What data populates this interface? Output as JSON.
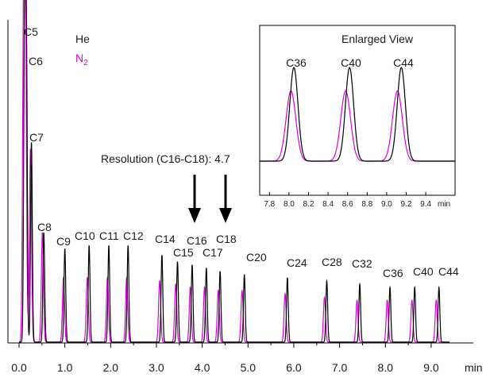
{
  "chart_data": {
    "type": "line",
    "xlabel": "min",
    "xlim": [
      0.0,
      9.4
    ],
    "x_ticks": [
      "0.0",
      "1.0",
      "2.0",
      "3.0",
      "4.0",
      "5.0",
      "6.0",
      "7.0",
      "8.0",
      "9.0"
    ],
    "ylim": [
      0,
      1
    ],
    "series": [
      {
        "name": "He",
        "color": "#000000"
      },
      {
        "name": "N2",
        "color": "#e000e0"
      }
    ],
    "peaks": [
      {
        "label": "C5",
        "he_rt": 0.12,
        "he_h": 0.97,
        "n2_rt": 0.1,
        "n2_h": 0.99
      },
      {
        "label": "C6",
        "he_rt": 0.16,
        "he_h": 0.93,
        "n2_rt": 0.14,
        "n2_h": 0.91
      },
      {
        "label": "C7",
        "he_rt": 0.27,
        "he_h": 0.62,
        "n2_rt": 0.25,
        "n2_h": 0.6
      },
      {
        "label": "C8",
        "he_rt": 0.54,
        "he_h": 0.34,
        "n2_rt": 0.51,
        "n2_h": 0.34
      },
      {
        "label": "C9",
        "he_rt": 1.0,
        "he_h": 0.29,
        "n2_rt": 0.97,
        "n2_h": 0.2
      },
      {
        "label": "C10",
        "he_rt": 1.53,
        "he_h": 0.3,
        "n2_rt": 1.49,
        "n2_h": 0.2
      },
      {
        "label": "C11",
        "he_rt": 1.96,
        "he_h": 0.3,
        "n2_rt": 1.93,
        "n2_h": 0.2
      },
      {
        "label": "C12",
        "he_rt": 2.38,
        "he_h": 0.3,
        "n2_rt": 2.35,
        "n2_h": 0.2
      },
      {
        "label": "C14",
        "he_rt": 3.12,
        "he_h": 0.27,
        "n2_rt": 3.07,
        "n2_h": 0.19
      },
      {
        "label": "C15",
        "he_rt": 3.46,
        "he_h": 0.25,
        "n2_rt": 3.42,
        "n2_h": 0.18
      },
      {
        "label": "C16",
        "he_rt": 3.78,
        "he_h": 0.24,
        "n2_rt": 3.74,
        "n2_h": 0.17
      },
      {
        "label": "C17",
        "he_rt": 4.09,
        "he_h": 0.23,
        "n2_rt": 4.05,
        "n2_h": 0.17
      },
      {
        "label": "C18",
        "he_rt": 4.39,
        "he_h": 0.22,
        "n2_rt": 4.35,
        "n2_h": 0.16
      },
      {
        "label": "C20",
        "he_rt": 4.92,
        "he_h": 0.21,
        "n2_rt": 4.87,
        "n2_h": 0.16
      },
      {
        "label": "C24",
        "he_rt": 5.86,
        "he_h": 0.2,
        "n2_rt": 5.81,
        "n2_h": 0.15
      },
      {
        "label": "C28",
        "he_rt": 6.72,
        "he_h": 0.19,
        "n2_rt": 6.67,
        "n2_h": 0.14
      },
      {
        "label": "C32",
        "he_rt": 7.44,
        "he_h": 0.18,
        "n2_rt": 7.38,
        "n2_h": 0.13
      },
      {
        "label": "C36",
        "he_rt": 8.1,
        "he_h": 0.17,
        "n2_rt": 8.04,
        "n2_h": 0.13
      },
      {
        "label": "C40",
        "he_rt": 8.64,
        "he_h": 0.17,
        "n2_rt": 8.58,
        "n2_h": 0.13
      },
      {
        "label": "C44",
        "he_rt": 9.17,
        "he_h": 0.17,
        "n2_rt": 9.11,
        "n2_h": 0.13
      }
    ],
    "annotations": {
      "resolution_text": "Resolution (C16-C18): 4.7",
      "arrows_at": [
        "C16",
        "C18"
      ]
    },
    "legend": {
      "he": "He",
      "n2_main": "N",
      "n2_sub": "2",
      "placement": "top-left"
    },
    "inset": {
      "title": "Enlarged View",
      "xlabel": "min",
      "xlim": [
        7.7,
        9.7
      ],
      "x_ticks": [
        "7.8",
        "8.0",
        "8.2",
        "8.4",
        "8.6",
        "8.8",
        "9.0",
        "9.2",
        "9.4"
      ],
      "peaks": [
        {
          "label": "C36",
          "he_rt": 8.05,
          "n2_rt": 8.02
        },
        {
          "label": "C40",
          "he_rt": 8.62,
          "n2_rt": 8.58
        },
        {
          "label": "C44",
          "he_rt": 9.15,
          "n2_rt": 9.11
        }
      ],
      "he_h": 0.88,
      "n2_h": 0.66
    }
  }
}
